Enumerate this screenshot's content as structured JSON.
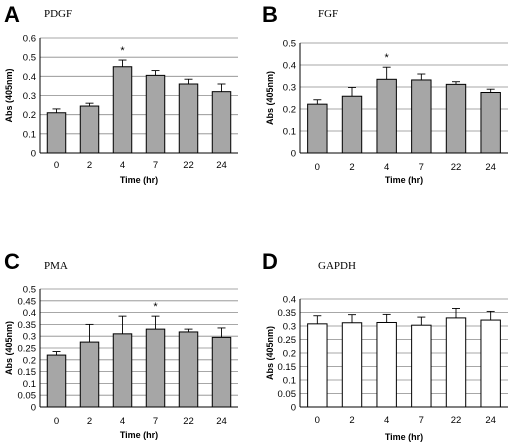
{
  "chart_data": [
    {
      "type": "bar",
      "panel": "A",
      "title": "PDGF",
      "xlabel": "Time (hr)",
      "ylabel": "Abs (405nm)",
      "categories": [
        "0",
        "2",
        "4",
        "7",
        "22",
        "24"
      ],
      "values": [
        0.21,
        0.245,
        0.45,
        0.405,
        0.36,
        0.32
      ],
      "errors": [
        0.02,
        0.015,
        0.035,
        0.025,
        0.025,
        0.04
      ],
      "ylim": [
        0,
        0.6
      ],
      "yticks": [
        "0",
        "0.1",
        "0.2",
        "0.3",
        "0.4",
        "0.5",
        "0.6"
      ],
      "annotations": [
        {
          "category": "4",
          "text": "*"
        }
      ],
      "grid": true,
      "bar_color": "#a6a6a6"
    },
    {
      "type": "bar",
      "panel": "B",
      "title": "FGF",
      "xlabel": "Time (hr)",
      "ylabel": "Abs (405nm)",
      "categories": [
        "0",
        "2",
        "4",
        "7",
        "22",
        "24"
      ],
      "values": [
        0.222,
        0.258,
        0.335,
        0.332,
        0.312,
        0.275
      ],
      "errors": [
        0.02,
        0.04,
        0.055,
        0.027,
        0.012,
        0.015
      ],
      "ylim": [
        0,
        0.5
      ],
      "yticks": [
        "0",
        "0.1",
        "0.2",
        "0.3",
        "0.4",
        "0.5"
      ],
      "annotations": [
        {
          "category": "4",
          "text": "*"
        }
      ],
      "grid": true,
      "bar_color": "#a6a6a6"
    },
    {
      "type": "bar",
      "panel": "C",
      "title": "PMA",
      "xlabel": "Time (hr)",
      "ylabel": "Abs (405nm)",
      "categories": [
        "0",
        "2",
        "4",
        "7",
        "22",
        "24"
      ],
      "values": [
        0.22,
        0.275,
        0.31,
        0.33,
        0.318,
        0.295
      ],
      "errors": [
        0.015,
        0.075,
        0.075,
        0.055,
        0.012,
        0.04
      ],
      "ylim": [
        0,
        0.5
      ],
      "yticks": [
        "0",
        "0.05",
        "0.1",
        "0.15",
        "0.2",
        "0.25",
        "0.3",
        "0.35",
        "0.4",
        "0.45",
        "0.5"
      ],
      "annotations": [
        {
          "category": "7",
          "text": "*"
        }
      ],
      "grid": true,
      "bar_color": "#a6a6a6"
    },
    {
      "type": "bar",
      "panel": "D",
      "title": "GAPDH",
      "xlabel": "Time (hr)",
      "ylabel": "Abs (405nm)",
      "categories": [
        "0",
        "2",
        "4",
        "7",
        "22",
        "24"
      ],
      "values": [
        0.308,
        0.312,
        0.313,
        0.303,
        0.33,
        0.322
      ],
      "errors": [
        0.03,
        0.03,
        0.03,
        0.03,
        0.035,
        0.032
      ],
      "ylim": [
        0,
        0.4
      ],
      "yticks": [
        "0",
        "0.05",
        "0.1",
        "0.15",
        "0.2",
        "0.25",
        "0.3",
        "0.35",
        "0.4"
      ],
      "annotations": [],
      "grid": true,
      "bar_color": "#ffffff"
    }
  ]
}
